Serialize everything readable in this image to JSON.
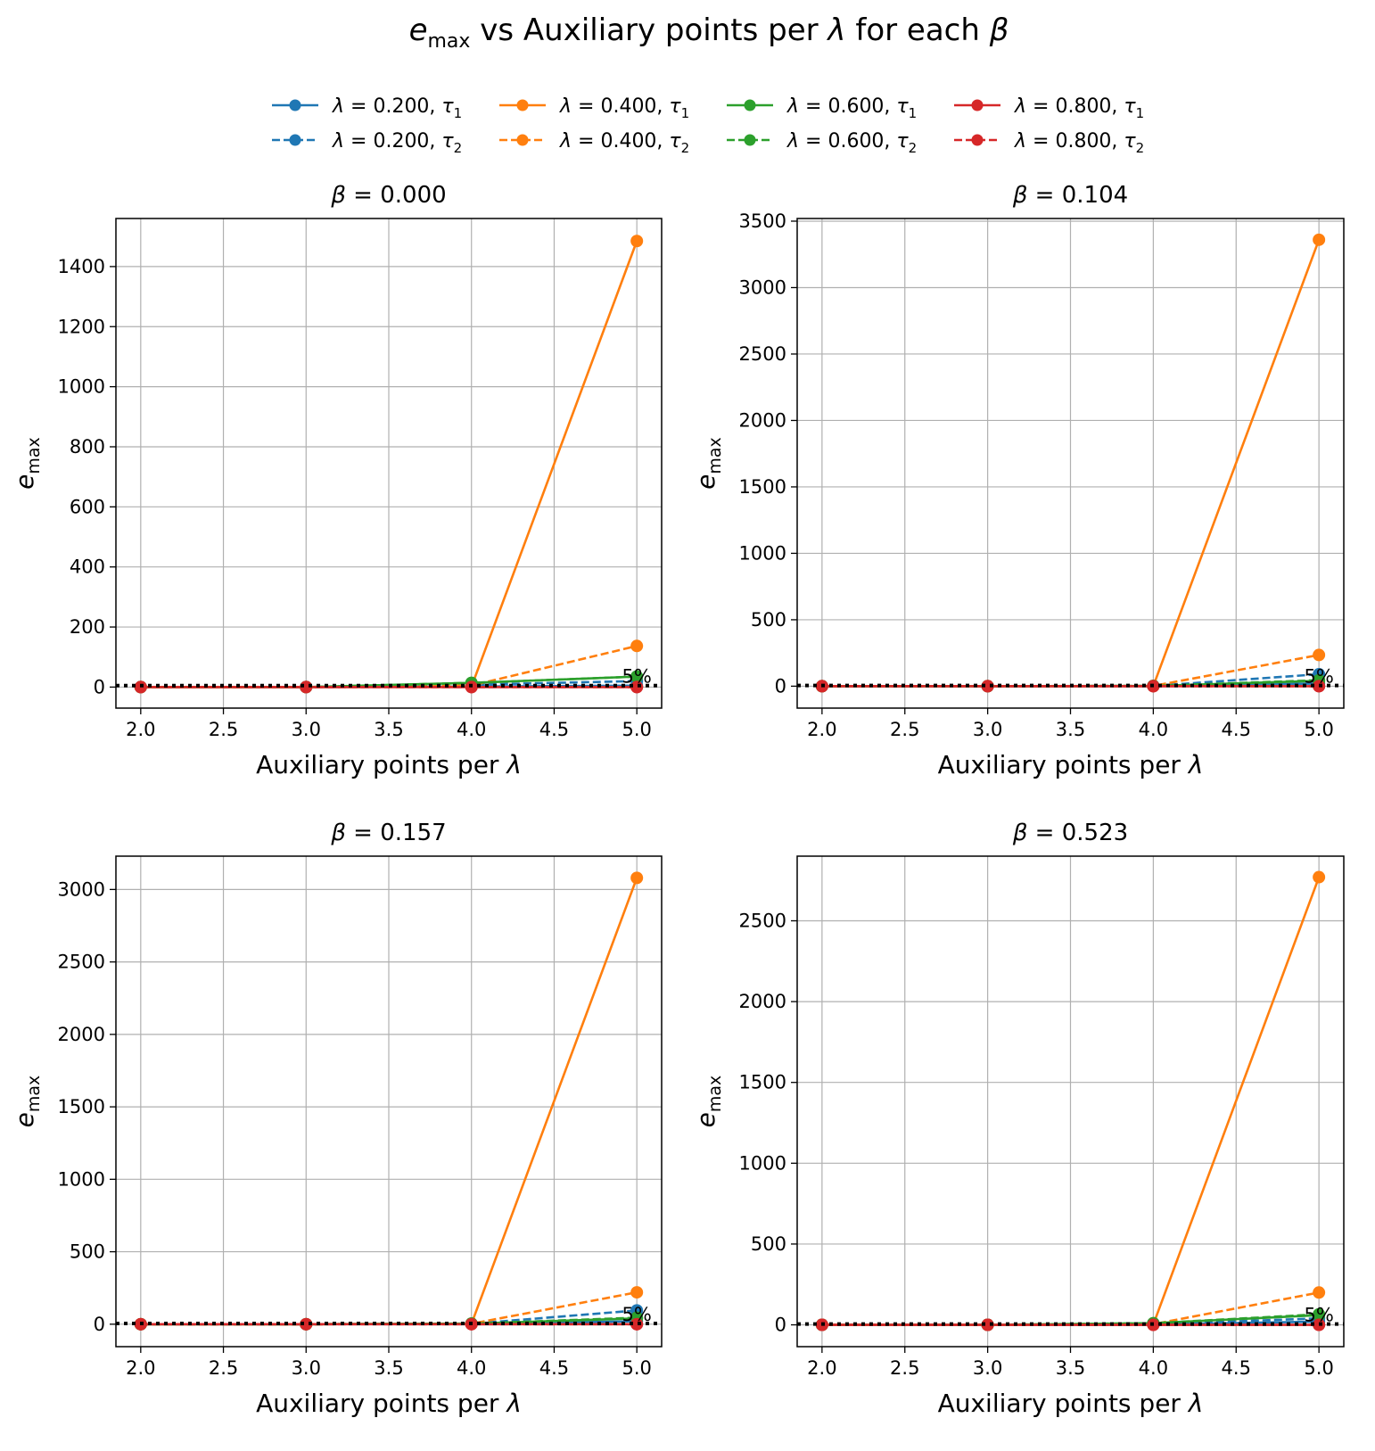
{
  "figure_title": {
    "e": "e",
    "max": "max",
    "middle": " vs Auxiliary points per ",
    "lambda": "λ",
    "for_each": " for each ",
    "beta": "β"
  },
  "colors": {
    "blue": "#1f77b4",
    "orange": "#ff7f0e",
    "green": "#2ca02c",
    "red": "#d62728",
    "grid": "#b0b0b0",
    "reference_line": "#000000"
  },
  "legend": [
    {
      "lam": "0.200",
      "tau": "1",
      "style": "solid",
      "color": "#1f77b4"
    },
    {
      "lam": "0.400",
      "tau": "1",
      "style": "solid",
      "color": "#ff7f0e"
    },
    {
      "lam": "0.600",
      "tau": "1",
      "style": "solid",
      "color": "#2ca02c"
    },
    {
      "lam": "0.800",
      "tau": "1",
      "style": "solid",
      "color": "#d62728"
    },
    {
      "lam": "0.200",
      "tau": "2",
      "style": "dashed",
      "color": "#1f77b4"
    },
    {
      "lam": "0.400",
      "tau": "2",
      "style": "dashed",
      "color": "#ff7f0e"
    },
    {
      "lam": "0.600",
      "tau": "2",
      "style": "dashed",
      "color": "#2ca02c"
    },
    {
      "lam": "0.800",
      "tau": "2",
      "style": "dashed",
      "color": "#d62728"
    }
  ],
  "legend_placement": "top-center, 4 columns",
  "chart_data": [
    {
      "type": "line",
      "beta": "0.000",
      "xlabel": "Auxiliary points per λ",
      "ylabel": "e_max",
      "xlim": [
        1.85,
        5.15
      ],
      "ylim": [
        -70,
        1560
      ],
      "xticks": [
        "2.0",
        "2.5",
        "3.0",
        "3.5",
        "4.0",
        "4.5",
        "5.0"
      ],
      "yticks": [
        "0",
        "200",
        "400",
        "600",
        "800",
        "1000",
        "1200",
        "1400"
      ],
      "grid": true,
      "reference_line": {
        "y": 5,
        "style": "dotted",
        "label": "5%"
      },
      "x": [
        2,
        3,
        4,
        5
      ],
      "series": [
        {
          "lam": "0.200",
          "tau": "1",
          "color": "#1f77b4",
          "style": "solid",
          "values": [
            0,
            0,
            2,
            5
          ]
        },
        {
          "lam": "0.200",
          "tau": "2",
          "color": "#1f77b4",
          "style": "dashed",
          "values": [
            0,
            0,
            8,
            20
          ]
        },
        {
          "lam": "0.400",
          "tau": "1",
          "color": "#ff7f0e",
          "style": "solid",
          "values": [
            0,
            0,
            1,
            1485
          ]
        },
        {
          "lam": "0.400",
          "tau": "2",
          "color": "#ff7f0e",
          "style": "dashed",
          "values": [
            0,
            0,
            5,
            137
          ]
        },
        {
          "lam": "0.600",
          "tau": "1",
          "color": "#2ca02c",
          "style": "solid",
          "values": [
            0,
            0,
            14,
            35
          ]
        },
        {
          "lam": "0.600",
          "tau": "2",
          "color": "#2ca02c",
          "style": "dashed",
          "values": [
            0,
            0,
            14,
            35
          ]
        },
        {
          "lam": "0.800",
          "tau": "1",
          "color": "#d62728",
          "style": "solid",
          "values": [
            0,
            0,
            0,
            0
          ]
        },
        {
          "lam": "0.800",
          "tau": "2",
          "color": "#d62728",
          "style": "dashed",
          "values": [
            0,
            0,
            0,
            0
          ]
        }
      ]
    },
    {
      "type": "line",
      "beta": "0.104",
      "xlabel": "Auxiliary points per λ",
      "ylabel": "e_max",
      "xlim": [
        1.85,
        5.15
      ],
      "ylim": [
        -165,
        3520
      ],
      "xticks": [
        "2.0",
        "2.5",
        "3.0",
        "3.5",
        "4.0",
        "4.5",
        "5.0"
      ],
      "yticks": [
        "0",
        "500",
        "1000",
        "1500",
        "2000",
        "2500",
        "3000",
        "3500"
      ],
      "grid": true,
      "reference_line": {
        "y": 5,
        "style": "dotted",
        "label": "5%"
      },
      "x": [
        2,
        3,
        4,
        5
      ],
      "series": [
        {
          "lam": "0.200",
          "tau": "1",
          "color": "#1f77b4",
          "style": "solid",
          "values": [
            0,
            0,
            1,
            20
          ]
        },
        {
          "lam": "0.200",
          "tau": "2",
          "color": "#1f77b4",
          "style": "dashed",
          "values": [
            0,
            0,
            2,
            90
          ]
        },
        {
          "lam": "0.400",
          "tau": "1",
          "color": "#ff7f0e",
          "style": "solid",
          "values": [
            0,
            0,
            1,
            3360
          ]
        },
        {
          "lam": "0.400",
          "tau": "2",
          "color": "#ff7f0e",
          "style": "dashed",
          "values": [
            0,
            0,
            2,
            235
          ]
        },
        {
          "lam": "0.600",
          "tau": "1",
          "color": "#2ca02c",
          "style": "solid",
          "values": [
            0,
            0,
            2,
            40
          ]
        },
        {
          "lam": "0.600",
          "tau": "2",
          "color": "#2ca02c",
          "style": "dashed",
          "values": [
            0,
            0,
            2,
            45
          ]
        },
        {
          "lam": "0.800",
          "tau": "1",
          "color": "#d62728",
          "style": "solid",
          "values": [
            0,
            0,
            0,
            0
          ]
        },
        {
          "lam": "0.800",
          "tau": "2",
          "color": "#d62728",
          "style": "dashed",
          "values": [
            0,
            0,
            0,
            0
          ]
        }
      ]
    },
    {
      "type": "line",
      "beta": "0.157",
      "xlabel": "Auxiliary points per λ",
      "ylabel": "e_max",
      "xlim": [
        1.85,
        5.15
      ],
      "ylim": [
        -155,
        3230
      ],
      "xticks": [
        "2.0",
        "2.5",
        "3.0",
        "3.5",
        "4.0",
        "4.5",
        "5.0"
      ],
      "yticks": [
        "0",
        "500",
        "1000",
        "1500",
        "2000",
        "2500",
        "3000"
      ],
      "grid": true,
      "reference_line": {
        "y": 5,
        "style": "dotted",
        "label": "5%"
      },
      "x": [
        2,
        3,
        4,
        5
      ],
      "series": [
        {
          "lam": "0.200",
          "tau": "1",
          "color": "#1f77b4",
          "style": "solid",
          "values": [
            0,
            0,
            2,
            20
          ]
        },
        {
          "lam": "0.200",
          "tau": "2",
          "color": "#1f77b4",
          "style": "dashed",
          "values": [
            0,
            0,
            3,
            95
          ]
        },
        {
          "lam": "0.400",
          "tau": "1",
          "color": "#ff7f0e",
          "style": "solid",
          "values": [
            0,
            0,
            2,
            3080
          ]
        },
        {
          "lam": "0.400",
          "tau": "2",
          "color": "#ff7f0e",
          "style": "dashed",
          "values": [
            0,
            0,
            3,
            220
          ]
        },
        {
          "lam": "0.600",
          "tau": "1",
          "color": "#2ca02c",
          "style": "solid",
          "values": [
            0,
            0,
            4,
            40
          ]
        },
        {
          "lam": "0.600",
          "tau": "2",
          "color": "#2ca02c",
          "style": "dashed",
          "values": [
            0,
            0,
            4,
            45
          ]
        },
        {
          "lam": "0.800",
          "tau": "1",
          "color": "#d62728",
          "style": "solid",
          "values": [
            0,
            0,
            0,
            0
          ]
        },
        {
          "lam": "0.800",
          "tau": "2",
          "color": "#d62728",
          "style": "dashed",
          "values": [
            0,
            0,
            0,
            0
          ]
        }
      ]
    },
    {
      "type": "line",
      "beta": "0.523",
      "xlabel": "Auxiliary points per λ",
      "ylabel": "e_max",
      "xlim": [
        1.85,
        5.15
      ],
      "ylim": [
        -135,
        2900
      ],
      "xticks": [
        "2.0",
        "2.5",
        "3.0",
        "3.5",
        "4.0",
        "4.5",
        "5.0"
      ],
      "yticks": [
        "0",
        "500",
        "1000",
        "1500",
        "2000",
        "2500"
      ],
      "grid": true,
      "reference_line": {
        "y": 5,
        "style": "dotted",
        "label": "5%"
      },
      "x": [
        2,
        3,
        4,
        5
      ],
      "series": [
        {
          "lam": "0.200",
          "tau": "1",
          "color": "#1f77b4",
          "style": "solid",
          "values": [
            0,
            0,
            2,
            20
          ]
        },
        {
          "lam": "0.200",
          "tau": "2",
          "color": "#1f77b4",
          "style": "dashed",
          "values": [
            0,
            0,
            4,
            40
          ]
        },
        {
          "lam": "0.400",
          "tau": "1",
          "color": "#ff7f0e",
          "style": "solid",
          "values": [
            0,
            0,
            2,
            2770
          ]
        },
        {
          "lam": "0.400",
          "tau": "2",
          "color": "#ff7f0e",
          "style": "dashed",
          "values": [
            0,
            0,
            4,
            200
          ]
        },
        {
          "lam": "0.600",
          "tau": "1",
          "color": "#2ca02c",
          "style": "solid",
          "values": [
            0,
            0,
            10,
            60
          ]
        },
        {
          "lam": "0.600",
          "tau": "2",
          "color": "#2ca02c",
          "style": "dashed",
          "values": [
            0,
            0,
            10,
            65
          ]
        },
        {
          "lam": "0.800",
          "tau": "1",
          "color": "#d62728",
          "style": "solid",
          "values": [
            0,
            0,
            0,
            0
          ]
        },
        {
          "lam": "0.800",
          "tau": "2",
          "color": "#d62728",
          "style": "dashed",
          "values": [
            0,
            0,
            0,
            0
          ]
        }
      ]
    }
  ]
}
